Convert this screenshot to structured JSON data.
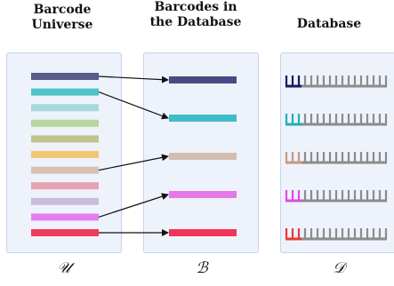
{
  "headers": {
    "universe": [
      "Barcode",
      "Universe"
    ],
    "database_subset": [
      "Barcodes in",
      "the Database"
    ],
    "database": [
      "Database"
    ]
  },
  "footers": {
    "universe": "𝒰",
    "database_subset": "ℬ",
    "database": "𝒟"
  },
  "universe_barcodes": [
    {
      "color": "#5a5a8c"
    },
    {
      "color": "#4fc4c8"
    },
    {
      "color": "#a8d6de"
    },
    {
      "color": "#b6d69a"
    },
    {
      "color": "#bfc48a"
    },
    {
      "color": "#f0c874"
    },
    {
      "color": "#d8c0b6"
    },
    {
      "color": "#e6a2b0"
    },
    {
      "color": "#c8bcdc"
    },
    {
      "color": "#e67ef0"
    },
    {
      "color": "#ef3b5b"
    }
  ],
  "database_barcodes": [
    {
      "color": "#4a4a82",
      "from_universe_index": 0
    },
    {
      "color": "#3fbcc6",
      "from_universe_index": 1
    },
    {
      "color": "#d2bdb0",
      "from_universe_index": 6
    },
    {
      "color": "#e47ae8",
      "from_universe_index": 9
    },
    {
      "color": "#f0345a",
      "from_universe_index": 10
    }
  ],
  "database_records": [
    {
      "prefix_color": "#1a1a5a"
    },
    {
      "prefix_color": "#1fb0b8"
    },
    {
      "prefix_color": "#c49a82"
    },
    {
      "prefix_color": "#dc4ce8"
    },
    {
      "prefix_color": "#e83a3a"
    }
  ],
  "colors": {
    "panel_fill": "#eef2fb",
    "panel_border": "#c5d3ec",
    "comb_gray": "#8c8c8c",
    "arrow": "#111111"
  }
}
